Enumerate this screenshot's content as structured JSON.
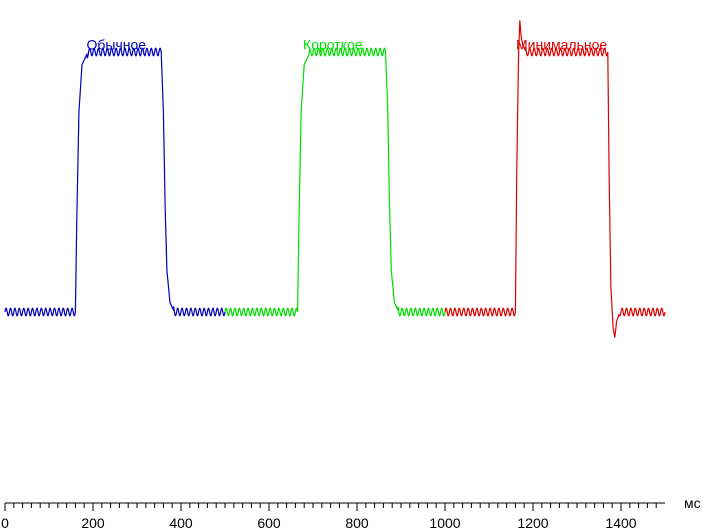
{
  "chart_data": {
    "type": "line",
    "xlabel": "",
    "x_unit": "мс",
    "xlim": [
      0,
      1500
    ],
    "ylim": [
      0,
      100
    ],
    "grid": false,
    "x_major_ticks": [
      0,
      200,
      400,
      600,
      800,
      1000,
      1200,
      1400
    ],
    "x_tick_labels": [
      "0",
      "200",
      "400",
      "600",
      "800",
      "1000",
      "1200",
      "1400"
    ],
    "x_minor_step": 20,
    "ripple_amplitude": 1.2,
    "ripple_period": 10,
    "series": [
      {
        "name": "Обычное",
        "color": "#0000b4",
        "label_at": {
          "x": 253,
          "y": 96
        },
        "points": [
          [
            0,
            12
          ],
          [
            160,
            12
          ],
          [
            163,
            40
          ],
          [
            168,
            75
          ],
          [
            175,
            90
          ],
          [
            185,
            93
          ],
          [
            190,
            94
          ],
          [
            355,
            94
          ],
          [
            360,
            75
          ],
          [
            364,
            45
          ],
          [
            368,
            25
          ],
          [
            375,
            15
          ],
          [
            385,
            12
          ],
          [
            500,
            12
          ]
        ]
      },
      {
        "name": "Короткое",
        "color": "#00dc00",
        "label_at": {
          "x": 745,
          "y": 96
        },
        "points": [
          [
            500,
            12
          ],
          [
            665,
            12
          ],
          [
            668,
            40
          ],
          [
            673,
            75
          ],
          [
            680,
            90
          ],
          [
            690,
            93
          ],
          [
            695,
            94
          ],
          [
            865,
            94
          ],
          [
            870,
            75
          ],
          [
            874,
            45
          ],
          [
            878,
            25
          ],
          [
            885,
            15
          ],
          [
            895,
            12
          ],
          [
            1000,
            12
          ]
        ]
      },
      {
        "name": "Минимальное",
        "color": "#dc0000",
        "label_at": {
          "x": 1265,
          "y": 96
        },
        "points": [
          [
            1000,
            12
          ],
          [
            1160,
            12
          ],
          [
            1163,
            55
          ],
          [
            1167,
            92
          ],
          [
            1170,
            104
          ],
          [
            1173,
            99
          ],
          [
            1177,
            96
          ],
          [
            1185,
            94
          ],
          [
            1370,
            94
          ],
          [
            1373,
            55
          ],
          [
            1377,
            20
          ],
          [
            1382,
            7
          ],
          [
            1386,
            4
          ],
          [
            1390,
            9
          ],
          [
            1397,
            12
          ],
          [
            1500,
            12
          ]
        ]
      }
    ]
  }
}
